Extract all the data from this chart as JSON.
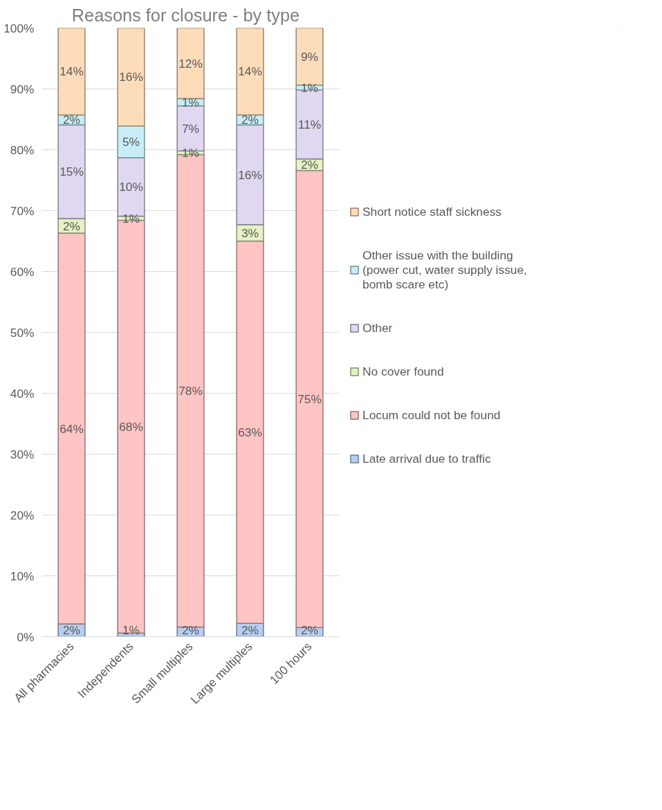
{
  "chart_data": {
    "type": "bar",
    "stacked": true,
    "title": "Reasons  for closure  - by type",
    "categories": [
      "All pharmacies",
      "Independents",
      "Small multiples",
      "Large multiples",
      "100 hours"
    ],
    "series": [
      {
        "name": "Late arrival due to traffic",
        "color": "#b7cff0",
        "values": [
          2.1,
          0.6,
          1.6,
          2.2,
          1.5
        ],
        "value_labels": [
          "2%",
          "1%",
          "2%",
          "2%",
          "2%"
        ]
      },
      {
        "name": "Locum could not be found",
        "color": "#ffc4c4",
        "values": [
          64.2,
          67.8,
          77.6,
          62.8,
          75.1
        ],
        "value_labels": [
          "64%",
          "68%",
          "78%",
          "63%",
          "75%"
        ]
      },
      {
        "name": "No cover found",
        "color": "#e4f2c4",
        "values": [
          2.4,
          0.7,
          0.6,
          2.7,
          1.9
        ],
        "value_labels": [
          "2%",
          "1%",
          "1%",
          "3%",
          "2%"
        ]
      },
      {
        "name": "Other",
        "color": "#e0d7f0",
        "values": [
          15.4,
          9.6,
          7.4,
          16.4,
          11.3
        ],
        "value_labels": [
          "15%",
          "10%",
          "7%",
          "16%",
          "11%"
        ]
      },
      {
        "name": "Other issue with the building (power cut, water supply issue, bomb scare etc)",
        "color": "#c8edf7",
        "values": [
          1.6,
          5.2,
          1.2,
          1.6,
          0.8
        ],
        "value_labels": [
          "2%",
          "5%",
          "1%",
          "2%",
          "1%"
        ]
      },
      {
        "name": "Short notice staff sickness",
        "color": "#fddcba",
        "values": [
          14.3,
          16.1,
          11.6,
          14.3,
          9.4
        ],
        "value_labels": [
          "14%",
          "16%",
          "12%",
          "14%",
          "9%"
        ]
      }
    ],
    "ylim": [
      0,
      100
    ],
    "yticks": [
      {
        "value": 0,
        "label": "0%"
      },
      {
        "value": 10,
        "label": "10%"
      },
      {
        "value": 20,
        "label": "20%"
      },
      {
        "value": 30,
        "label": "30%"
      },
      {
        "value": 40,
        "label": "40%"
      },
      {
        "value": 50,
        "label": "50%"
      },
      {
        "value": 60,
        "label": "60%"
      },
      {
        "value": 70,
        "label": "70%"
      },
      {
        "value": 80,
        "label": "80%"
      },
      {
        "value": 90,
        "label": "90%"
      },
      {
        "value": 100,
        "label": "100%"
      }
    ],
    "grid": "y",
    "legend": "right"
  }
}
